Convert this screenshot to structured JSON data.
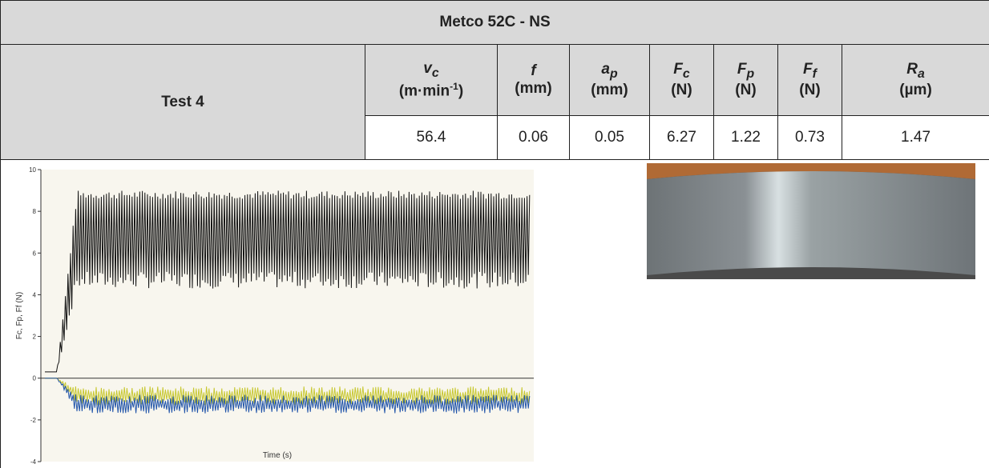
{
  "title": "Metco 52C - NS",
  "test": "Test 4",
  "columns": [
    {
      "symbol": "v",
      "sub": "c",
      "unit": "(m·min",
      "unit_sup": "-1",
      "unit_end": ")"
    },
    {
      "symbol": "f",
      "unit": "(mm)"
    },
    {
      "symbol": "a",
      "sub": "p",
      "unit": "(mm)"
    },
    {
      "symbol": "F",
      "sub": "c",
      "unit": "(N)"
    },
    {
      "symbol": "F",
      "sub": "p",
      "unit": "(N)"
    },
    {
      "symbol": "F",
      "sub": "f",
      "unit": "(N)"
    },
    {
      "symbol": "R",
      "sub": "a",
      "unit": "(µm)"
    }
  ],
  "values": [
    "56.4",
    "0.06",
    "0.05",
    "6.27",
    "1.22",
    "0.73",
    "1.47"
  ],
  "chart": {
    "y_label": "Fc, Fp, Ff (N)",
    "x_label": "Time (s)",
    "ylim": [
      -4,
      10
    ],
    "yticks": [
      -4,
      -2,
      0,
      2,
      4,
      6,
      8,
      10
    ]
  }
}
